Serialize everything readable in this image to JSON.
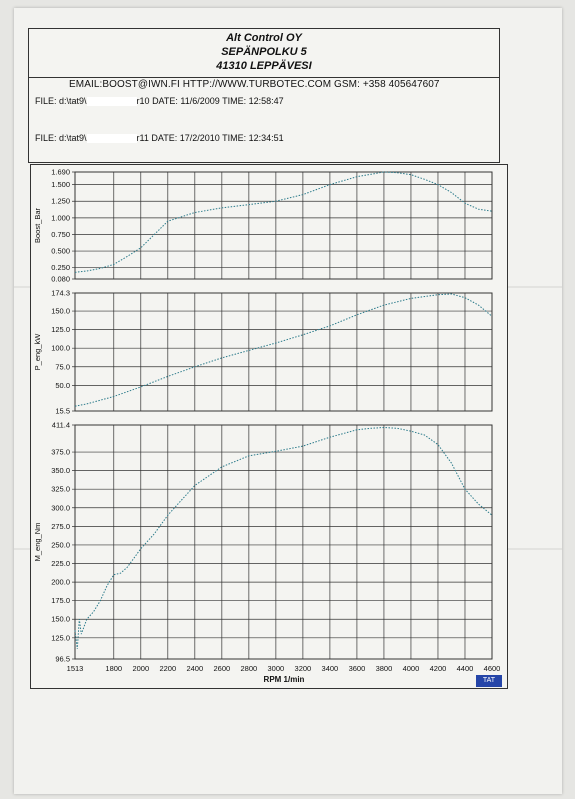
{
  "header": {
    "company": "Alt Control OY",
    "street": "SEPÄNPOLKU 5",
    "city": "41310 LEPPÄVESI",
    "contact": "EMAIL:BOOST@IWN.FI  HTTP://WWW.TURBOTEC.COM GSM:  +358 405647607"
  },
  "files": [
    {
      "prefix": "FILE: d:\\tat9\\",
      "suffix": "r10",
      "date_label": "DATE:",
      "date": "11/6/2009",
      "time_label": "TIME:",
      "time": "12:58:47"
    },
    {
      "prefix": "FILE: d:\\tat9\\",
      "suffix": "r11",
      "date_label": "DATE:",
      "date": "17/2/2010",
      "time_label": "TIME:",
      "time": "12:34:51"
    }
  ],
  "logo_text": "TAT",
  "colors": {
    "trace": "#2a7a8a",
    "grid": "#333333",
    "logo": "#2545a8"
  },
  "chart_data": [
    {
      "type": "line",
      "ylabel": "Boost_Bar",
      "ylim": [
        0.08,
        1.69
      ],
      "yticks": [
        "1.690",
        "1.500",
        "1.250",
        "1.000",
        "0.750",
        "0.500",
        "0.250",
        "0.080"
      ],
      "ytick_values": [
        1.69,
        1.5,
        1.25,
        1.0,
        0.75,
        0.5,
        0.25,
        0.08
      ],
      "x": [
        1513,
        1550,
        1600,
        1650,
        1700,
        1800,
        1900,
        2000,
        2100,
        2200,
        2400,
        2600,
        2800,
        3000,
        3200,
        3400,
        3600,
        3800,
        3900,
        4000,
        4100,
        4200,
        4300,
        4400,
        4500,
        4600
      ],
      "series": [
        {
          "values": [
            0.18,
            0.19,
            0.2,
            0.22,
            0.24,
            0.3,
            0.42,
            0.55,
            0.75,
            0.95,
            1.08,
            1.15,
            1.2,
            1.25,
            1.35,
            1.5,
            1.62,
            1.69,
            1.68,
            1.65,
            1.58,
            1.5,
            1.38,
            1.22,
            1.13,
            1.1
          ]
        }
      ]
    },
    {
      "type": "line",
      "ylabel": "P_eng_kW",
      "ylim": [
        15.5,
        174.3
      ],
      "yticks": [
        "174.3",
        "150.0",
        "125.0",
        "100.0",
        "75.0",
        "50.0",
        "15.5"
      ],
      "ytick_values": [
        174.3,
        150.0,
        125.0,
        100.0,
        75.0,
        50.0,
        15.5
      ],
      "x": [
        1513,
        1600,
        1700,
        1800,
        2000,
        2200,
        2400,
        2600,
        2800,
        3000,
        3200,
        3400,
        3600,
        3800,
        4000,
        4200,
        4300,
        4400,
        4500,
        4600
      ],
      "series": [
        {
          "values": [
            22,
            25,
            30,
            35,
            48,
            62,
            75,
            87,
            97,
            107,
            118,
            130,
            145,
            158,
            167,
            172,
            173,
            168,
            158,
            143
          ]
        }
      ]
    },
    {
      "type": "line",
      "ylabel": "M_eng_Nm",
      "xlabel": "RPM 1/min",
      "xlim": [
        1513,
        4600
      ],
      "xticks": [
        "1513",
        "1800",
        "2000",
        "2200",
        "2400",
        "2600",
        "2800",
        "3000",
        "3200",
        "3400",
        "3600",
        "3800",
        "4000",
        "4200",
        "4400",
        "4600"
      ],
      "xtick_values": [
        1513,
        1800,
        2000,
        2200,
        2400,
        2600,
        2800,
        3000,
        3200,
        3400,
        3600,
        3800,
        4000,
        4200,
        4400,
        4600
      ],
      "ylim": [
        96.5,
        411.4
      ],
      "yticks": [
        "411.4",
        "375.0",
        "350.0",
        "325.0",
        "300.0",
        "275.0",
        "250.0",
        "225.0",
        "200.0",
        "175.0",
        "150.0",
        "125.0",
        "96.5"
      ],
      "ytick_values": [
        411.4,
        375.0,
        350.0,
        325.0,
        300.0,
        275.0,
        250.0,
        225.0,
        200.0,
        175.0,
        150.0,
        125.0,
        96.5
      ],
      "series": [
        {
          "x": [
            1513,
            1520,
            1530,
            1545,
            1560,
            1600,
            1650,
            1700,
            1750,
            1800,
            1850,
            1900,
            2000,
            2100,
            2200,
            2300,
            2400,
            2600,
            2800,
            3000,
            3200,
            3400,
            3600,
            3700,
            3800,
            3900,
            4000,
            4100,
            4200,
            4300,
            4400,
            4500,
            4600
          ],
          "values": [
            135,
            125,
            110,
            150,
            130,
            150,
            160,
            175,
            195,
            210,
            212,
            220,
            245,
            265,
            290,
            310,
            330,
            355,
            370,
            376,
            383,
            395,
            405,
            407,
            408,
            407,
            403,
            398,
            385,
            360,
            325,
            305,
            290
          ]
        }
      ]
    }
  ]
}
